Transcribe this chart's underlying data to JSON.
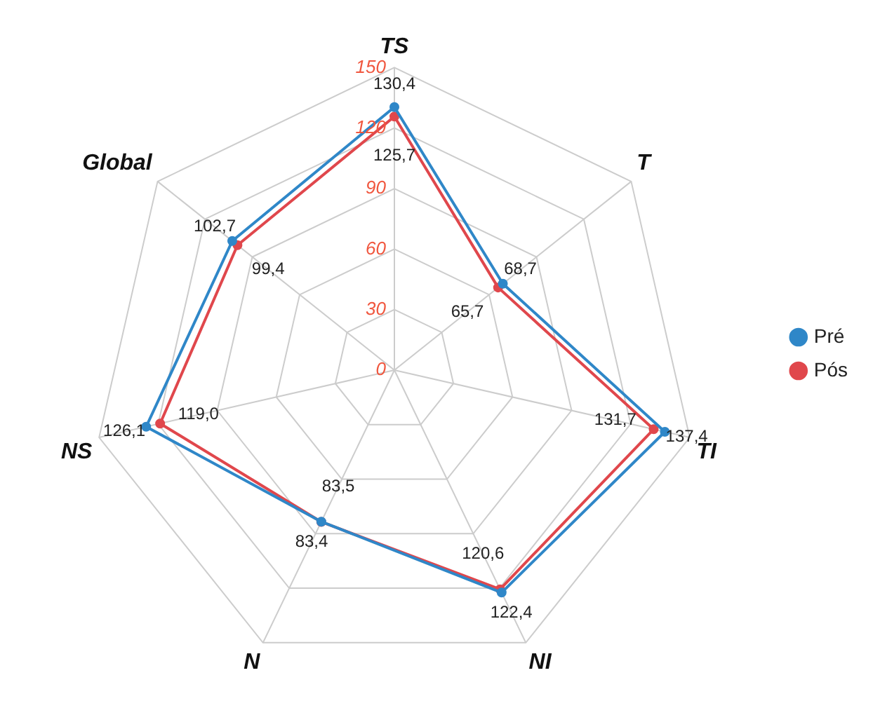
{
  "chart_data": {
    "type": "radar",
    "categories": [
      "TS",
      "T",
      "TI",
      "NI",
      "N",
      "NS",
      "Global"
    ],
    "series": [
      {
        "name": "Pré",
        "color": "#2f87c8",
        "values": [
          130.4,
          68.7,
          137.4,
          122.4,
          83.4,
          126.1,
          102.7
        ],
        "value_labels": [
          "130,4",
          "68,7",
          "137,4",
          "122,4",
          "83,4",
          "126,1",
          "102,7"
        ]
      },
      {
        "name": "Pós",
        "color": "#e0474c",
        "values": [
          125.7,
          65.7,
          131.7,
          120.6,
          83.5,
          119.0,
          99.4
        ],
        "value_labels": [
          "125,7",
          "65,7",
          "131,7",
          "120,6",
          "83,5",
          "119,0",
          "99,4"
        ]
      }
    ],
    "ylim": [
      0,
      150
    ],
    "yticks": [
      0,
      30,
      60,
      90,
      120,
      150
    ],
    "grid": true,
    "legend": "right",
    "marker": "circle",
    "line_style": "solid"
  }
}
